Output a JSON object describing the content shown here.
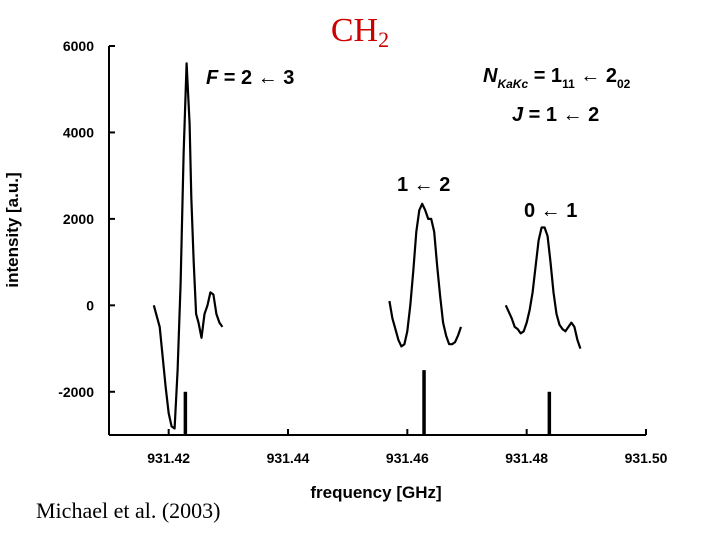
{
  "title": {
    "main": "CH",
    "sub": "2"
  },
  "citation": "Michael et al. (2003)",
  "colors": {
    "title": "#cc0000",
    "ink": "#000000"
  },
  "annotations": {
    "f_transition": {
      "var": "F",
      "rest": " = 2 ← 3"
    },
    "n_transition": {
      "var": "N",
      "sub_var": "KaKc",
      "eq": " = 1",
      "sub1": "11",
      "arrow": " ← 2",
      "sub2": "02"
    },
    "j_transition": {
      "var": "J",
      "rest": " = 1 ← 2"
    },
    "peak_1_2": "1 ← 2",
    "peak_0_1": "0 ← 1"
  },
  "chart_data": {
    "type": "line",
    "title": "CH2",
    "xlabel": "frequency [GHz]",
    "ylabel": "intensity [a.u.]",
    "xlim": [
      931.41,
      931.5
    ],
    "ylim": [
      -3000,
      6000
    ],
    "xticks": [
      931.42,
      931.44,
      931.46,
      931.48,
      931.5
    ],
    "xtick_labels": [
      "931.42",
      "931.44",
      "931.46",
      "931.48",
      "931.50"
    ],
    "yticks": [
      6000,
      4000,
      2000,
      0,
      -2000
    ],
    "ytick_labels": [
      "6000",
      "4000",
      "2000",
      "0",
      "-2000"
    ],
    "series": [
      {
        "name": "F = 2 ← 3 group",
        "x": [
          931.4175,
          931.4185,
          931.419,
          931.4195,
          931.42,
          931.4205,
          931.421,
          931.4215,
          931.422,
          931.4225,
          931.423,
          931.4235,
          931.4238,
          931.4242,
          931.4246,
          931.425,
          931.4255,
          931.426,
          931.4265,
          931.427,
          931.4275,
          931.428,
          931.4285,
          931.429
        ],
        "y": [
          0,
          -500,
          -1200,
          -1900,
          -2500,
          -2800,
          -2850,
          -1500,
          500,
          3500,
          5600,
          4200,
          2500,
          1000,
          -200,
          -400,
          -750,
          -200,
          0,
          300,
          250,
          -200,
          -400,
          -500
        ]
      },
      {
        "name": "1 ← 2 group",
        "x": [
          931.457,
          931.4575,
          931.458,
          931.4585,
          931.459,
          931.4595,
          931.46,
          931.4605,
          931.461,
          931.4615,
          931.462,
          931.4625,
          931.463,
          931.4635,
          931.464,
          931.4645,
          931.465,
          931.4655,
          931.466,
          931.4665,
          931.467,
          931.4675,
          931.468,
          931.4685,
          931.469
        ],
        "y": [
          100,
          -300,
          -550,
          -800,
          -950,
          -900,
          -600,
          0,
          800,
          1700,
          2200,
          2350,
          2200,
          2000,
          2000,
          1700,
          900,
          200,
          -400,
          -700,
          -900,
          -900,
          -850,
          -700,
          -500
        ]
      },
      {
        "name": "0 ← 1 group",
        "x": [
          931.4765,
          931.4775,
          931.478,
          931.4785,
          931.479,
          931.4795,
          931.48,
          931.4805,
          931.481,
          931.4815,
          931.482,
          931.4825,
          931.483,
          931.4835,
          931.484,
          931.4845,
          931.485,
          931.4855,
          931.486,
          931.4865,
          931.487,
          931.4875,
          931.488,
          931.4885,
          931.489
        ],
        "y": [
          0,
          -300,
          -500,
          -550,
          -650,
          -600,
          -400,
          -100,
          300,
          900,
          1500,
          1800,
          1800,
          1600,
          1000,
          300,
          -200,
          -450,
          -550,
          -600,
          -500,
          -400,
          -500,
          -800,
          -1000
        ]
      }
    ],
    "stick_spectrum": {
      "x": [
        931.4228,
        931.4332,
        931.4388,
        931.4628,
        931.4688,
        931.4838
      ],
      "y": [
        -2000,
        -3000,
        -3000,
        -1500,
        -3000,
        -2000
      ],
      "baseline": -3000
    }
  }
}
